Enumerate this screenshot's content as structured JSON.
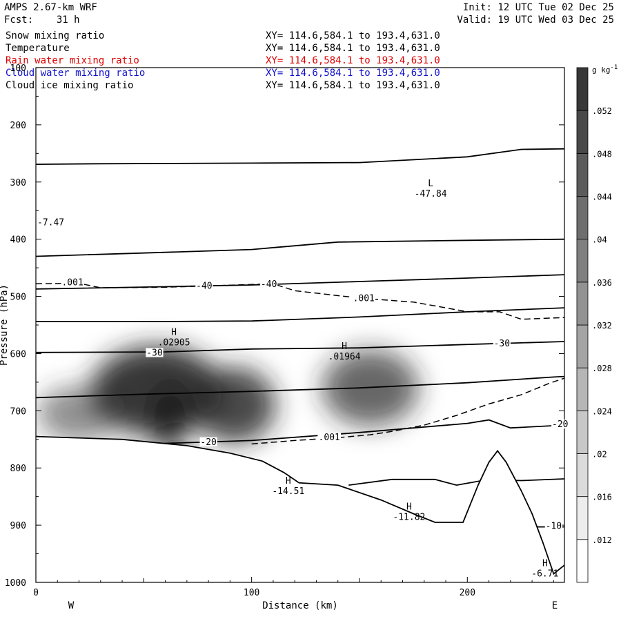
{
  "header": {
    "model": "AMPS 2.67-km WRF",
    "fcst": "Fcst:    31 h",
    "init": "Init: 12 UTC Tue 02 Dec 25",
    "valid": "Valid: 19 UTC Wed 03 Dec 25"
  },
  "fields": [
    {
      "name": "Snow mixing ratio",
      "xy": "XY= 114.6,584.1 to 193.4,631.0",
      "color": "#000000"
    },
    {
      "name": "Temperature",
      "xy": "XY= 114.6,584.1 to 193.4,631.0",
      "color": "#000000"
    },
    {
      "name": "Rain water mixing ratio",
      "xy": "XY= 114.6,584.1 to 193.4,631.0",
      "color": "#e00000"
    },
    {
      "name": "Cloud water mixing ratio",
      "xy": "XY= 114.6,584.1 to 193.4,631.0",
      "color": "#1010cc"
    },
    {
      "name": "Cloud ice mixing ratio",
      "xy": "XY= 114.6,584.1 to 193.4,631.0",
      "color": "#000000"
    }
  ],
  "chart_data": {
    "type": "heatmap",
    "xlabel": "Distance (km)",
    "ylabel": "Pressure (hPa)",
    "xlim": [
      0,
      245
    ],
    "ylim": [
      1000,
      100
    ],
    "x_ticks": [
      "0",
      "100",
      "200"
    ],
    "y_ticks": [
      "100",
      "200",
      "300",
      "400",
      "500",
      "600",
      "700",
      "800",
      "900",
      "1000"
    ],
    "x_end_labels": {
      "left": "W",
      "right": "E"
    },
    "colorbar": {
      "unit": "g kg",
      "unit_exp": "-1",
      "levels": [
        ".012",
        ".016",
        ".02",
        ".024",
        ".028",
        ".032",
        ".036",
        ".04",
        ".044",
        ".048",
        ".052"
      ]
    },
    "snow_maxima": [
      {
        "x": 56,
        "p": 665,
        "value": 0.029
      },
      {
        "x": 92,
        "p": 690,
        "value": 0.026
      },
      {
        "x": 155,
        "p": 660,
        "value": 0.022
      }
    ],
    "isotherms": [
      {
        "level": "",
        "points": [
          [
            0,
            269
          ],
          [
            30,
            268
          ],
          [
            100,
            267
          ],
          [
            150,
            266
          ],
          [
            200,
            256
          ],
          [
            225,
            243
          ],
          [
            245,
            242
          ]
        ]
      },
      {
        "level": "",
        "points": [
          [
            0,
            430
          ],
          [
            60,
            423
          ],
          [
            100,
            418
          ],
          [
            140,
            405
          ],
          [
            200,
            402
          ],
          [
            245,
            400
          ]
        ]
      },
      {
        "level": "-40",
        "points": [
          [
            0,
            487
          ],
          [
            60,
            483
          ],
          [
            100,
            480
          ],
          [
            150,
            474
          ],
          [
            200,
            468
          ],
          [
            245,
            462
          ]
        ]
      },
      {
        "level": "",
        "points": [
          [
            0,
            544
          ],
          [
            60,
            544
          ],
          [
            100,
            543
          ],
          [
            150,
            536
          ],
          [
            200,
            527
          ],
          [
            245,
            520
          ]
        ]
      },
      {
        "level": "-30",
        "points": [
          [
            0,
            598
          ],
          [
            60,
            597
          ],
          [
            100,
            592
          ],
          [
            150,
            590
          ],
          [
            200,
            584
          ],
          [
            245,
            579
          ]
        ]
      },
      {
        "level": "",
        "points": [
          [
            0,
            677
          ],
          [
            50,
            671
          ],
          [
            100,
            666
          ],
          [
            150,
            660
          ],
          [
            200,
            651
          ],
          [
            240,
            641
          ],
          [
            245,
            640
          ]
        ]
      },
      {
        "level": "-20",
        "points": [
          [
            0,
            745
          ],
          [
            60,
            757
          ],
          [
            100,
            752
          ],
          [
            150,
            738
          ],
          [
            200,
            722
          ],
          [
            210,
            716
          ],
          [
            220,
            730
          ],
          [
            245,
            725
          ]
        ]
      },
      {
        "level": "",
        "points": [
          [
            145,
            830
          ],
          [
            165,
            820
          ],
          [
            185,
            820
          ],
          [
            195,
            830
          ],
          [
            210,
            820
          ],
          [
            225,
            822
          ],
          [
            245,
            819
          ]
        ]
      },
      {
        "level": "-10",
        "points": [
          [
            228,
            903
          ],
          [
            245,
            903
          ]
        ]
      }
    ],
    "cloud_ice": {
      "level": ".001",
      "points": [
        [
          0,
          478
        ],
        [
          20,
          477
        ],
        [
          30,
          485
        ],
        [
          60,
          484
        ],
        [
          110,
          478
        ],
        [
          120,
          490
        ],
        [
          150,
          503
        ],
        [
          175,
          510
        ],
        [
          190,
          520
        ],
        [
          200,
          527
        ],
        [
          215,
          527
        ],
        [
          225,
          540
        ],
        [
          245,
          537
        ]
      ]
    },
    "cloud_ice_lower": {
      "level": ".001",
      "points": [
        [
          100,
          758
        ],
        [
          120,
          752
        ],
        [
          140,
          747
        ],
        [
          155,
          742
        ],
        [
          165,
          736
        ],
        [
          180,
          725
        ],
        [
          195,
          708
        ],
        [
          210,
          688
        ],
        [
          225,
          672
        ],
        [
          238,
          652
        ],
        [
          245,
          643
        ]
      ]
    },
    "terrain": [
      [
        0,
        745
      ],
      [
        40,
        750
      ],
      [
        70,
        761
      ],
      [
        90,
        774
      ],
      [
        105,
        788
      ],
      [
        115,
        808
      ],
      [
        122,
        826
      ],
      [
        140,
        830
      ],
      [
        160,
        856
      ],
      [
        175,
        880
      ],
      [
        185,
        895
      ],
      [
        198,
        895
      ],
      [
        205,
        830
      ],
      [
        210,
        790
      ],
      [
        214,
        770
      ],
      [
        218,
        790
      ],
      [
        225,
        840
      ],
      [
        230,
        880
      ],
      [
        235,
        930
      ],
      [
        240,
        985
      ],
      [
        245,
        970
      ],
      [
        245,
        1000
      ],
      [
        0,
        1000
      ]
    ],
    "annotations": [
      {
        "type": "max",
        "letter": "H",
        "value": ".02905",
        "x": 64,
        "p": 582
      },
      {
        "type": "max",
        "letter": "H",
        "value": ".01964",
        "x": 143,
        "p": 607
      },
      {
        "type": "min",
        "letter": "L",
        "value": "-47.84",
        "x": 183,
        "p": 322
      },
      {
        "type": "max",
        "letter": "H",
        "value": "-14.51",
        "x": 117,
        "p": 842
      },
      {
        "type": "max",
        "letter": "H",
        "value": "-11.82",
        "x": 173,
        "p": 887
      },
      {
        "type": "max",
        "letter": "H",
        "value": "-6.71",
        "x": 236,
        "p": 986
      },
      {
        "type": "edge",
        "value": "-7.47",
        "x": 0,
        "p": 372
      }
    ]
  }
}
